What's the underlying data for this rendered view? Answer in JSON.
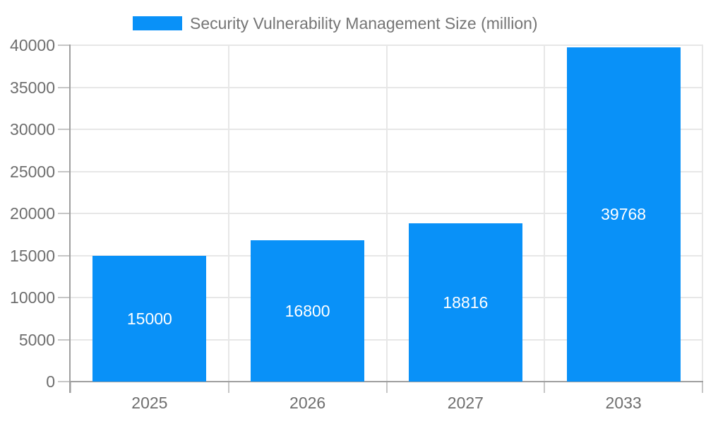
{
  "chart_data": {
    "type": "bar",
    "title": "Security Vulnerability Management Size (million)",
    "categories": [
      "2025",
      "2026",
      "2027",
      "2033"
    ],
    "values": [
      15000,
      16800,
      18816,
      39768
    ],
    "ylim": [
      0,
      40000
    ],
    "yticks": [
      0,
      5000,
      10000,
      15000,
      20000,
      25000,
      30000,
      35000,
      40000
    ],
    "xlabel": "",
    "ylabel": "",
    "grid": true,
    "legend_position": "top",
    "bar_color": "#0991f8",
    "value_label_color": "#ffffff",
    "axis_label_color": "#6e6e6e",
    "legend_text_color": "#757575",
    "gridline_color": "#e7e7e7",
    "axis_line_color": "#9f9f9f"
  }
}
